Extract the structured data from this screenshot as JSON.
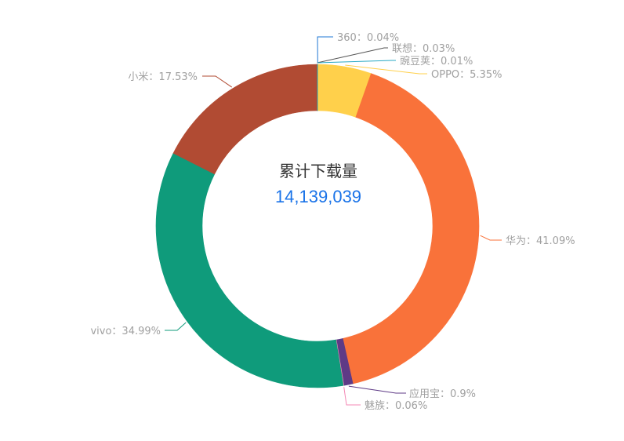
{
  "chart_data": {
    "type": "pie",
    "variant": "donut",
    "center": {
      "title": "累计下载量",
      "value": "14,139,039"
    },
    "slices": [
      {
        "name": "360",
        "percent": 0.04,
        "label": "360：0.04%",
        "color": "#1f77d4"
      },
      {
        "name": "OPPO",
        "percent": 5.35,
        "label": "OPPO：5.35%",
        "color": "#ffd04b"
      },
      {
        "name": "华为",
        "percent": 41.09,
        "label": "华为：41.09%",
        "color": "#f9723a"
      },
      {
        "name": "应用宝",
        "percent": 0.9,
        "label": "应用宝：0.9%",
        "color": "#5e3a86"
      },
      {
        "name": "魅族",
        "percent": 0.06,
        "label": "魅族：0.06%",
        "color": "#f489b5"
      },
      {
        "name": "vivo",
        "percent": 34.99,
        "label": "vivo：34.99%",
        "color": "#0f9b7b"
      },
      {
        "name": "小米",
        "percent": 17.53,
        "label": "小米：17.53%",
        "color": "#b14b33"
      },
      {
        "name": "联想",
        "percent": 0.03,
        "label": "联想：0.03%",
        "color": "#555555"
      },
      {
        "name": "豌豆荚",
        "percent": 0.01,
        "label": "豌豆荚：0.01%",
        "color": "#2aa9c4"
      }
    ]
  }
}
